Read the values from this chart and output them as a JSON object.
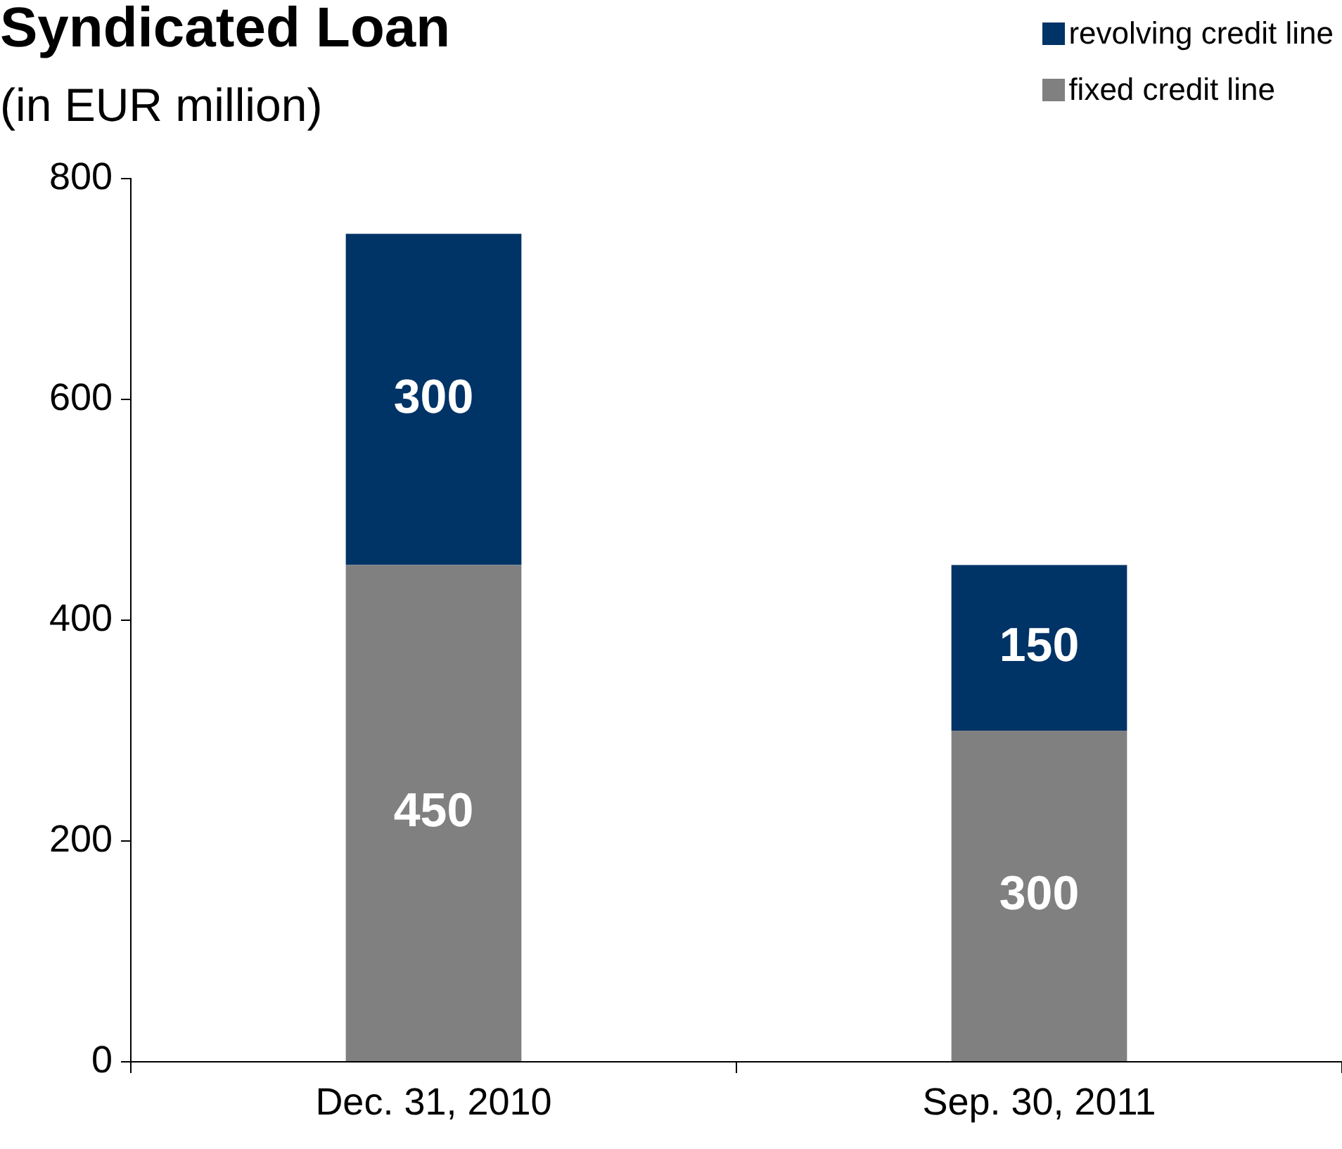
{
  "chart_data": {
    "type": "bar",
    "title": "Syndicated Loan",
    "subtitle": "(in EUR million)",
    "categories": [
      "Dec. 31, 2010",
      "Sep. 30, 2011"
    ],
    "series": [
      {
        "name": "fixed credit line",
        "color": "#808080",
        "values": [
          450,
          300
        ]
      },
      {
        "name": "revolving credit line",
        "color": "#003366",
        "values": [
          300,
          150
        ]
      }
    ],
    "stacked": true,
    "ylim": [
      0,
      800
    ],
    "yticks": [
      0,
      200,
      400,
      600,
      800
    ],
    "grid": false,
    "legend": "top right",
    "data_labels": true
  }
}
